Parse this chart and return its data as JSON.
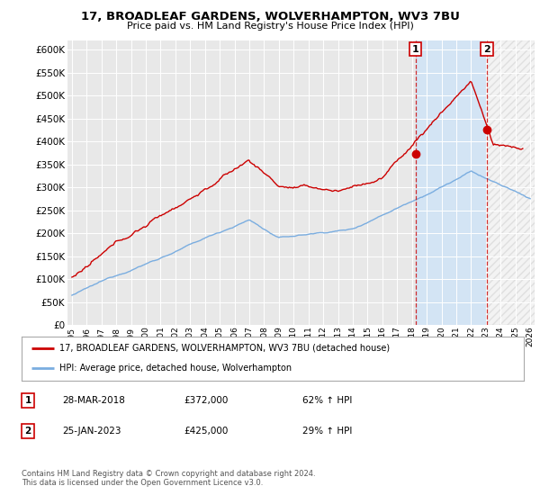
{
  "title": "17, BROADLEAF GARDENS, WOLVERHAMPTON, WV3 7BU",
  "subtitle": "Price paid vs. HM Land Registry's House Price Index (HPI)",
  "legend_line1": "17, BROADLEAF GARDENS, WOLVERHAMPTON, WV3 7BU (detached house)",
  "legend_line2": "HPI: Average price, detached house, Wolverhampton",
  "annotation1_date": "28-MAR-2018",
  "annotation1_price": "£372,000",
  "annotation1_hpi": "62% ↑ HPI",
  "annotation1_year": 2018.25,
  "annotation1_value": 372000,
  "annotation2_date": "25-JAN-2023",
  "annotation2_price": "£425,000",
  "annotation2_hpi": "29% ↑ HPI",
  "annotation2_year": 2023.07,
  "annotation2_value": 425000,
  "price_color": "#cc0000",
  "hpi_color": "#7aade0",
  "background_color": "#ffffff",
  "plot_bg_color": "#e8e8e8",
  "grid_color": "#ffffff",
  "shade_color": "#d0e4f7",
  "ylim": [
    0,
    620000
  ],
  "yticks": [
    0,
    50000,
    100000,
    150000,
    200000,
    250000,
    300000,
    350000,
    400000,
    450000,
    500000,
    550000,
    600000
  ],
  "xlim_left": 1994.7,
  "xlim_right": 2026.3,
  "footer": "Contains HM Land Registry data © Crown copyright and database right 2024.\nThis data is licensed under the Open Government Licence v3.0."
}
